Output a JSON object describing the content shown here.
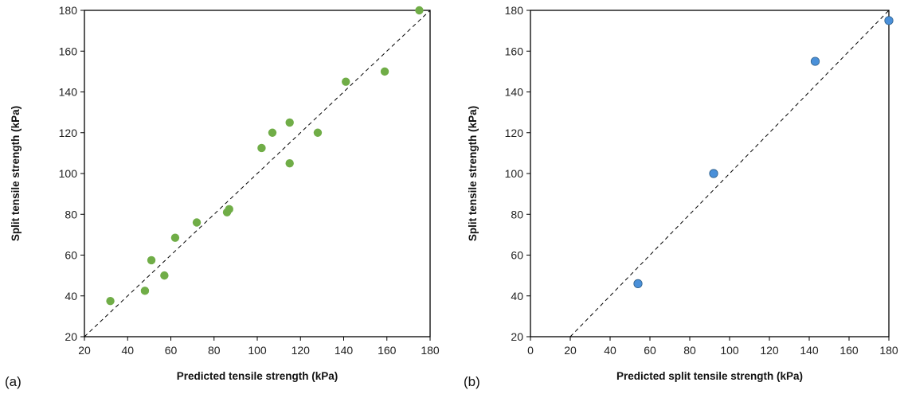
{
  "chart_data": [
    {
      "type": "scatter",
      "panel_label": "(a)",
      "xlabel": "Predicted tensile strength (kPa)",
      "ylabel": "Split tensile strength (kPa)",
      "xlim": [
        20,
        180
      ],
      "ylim": [
        20,
        180
      ],
      "xticks": [
        20,
        40,
        60,
        80,
        100,
        120,
        140,
        160,
        180
      ],
      "yticks": [
        20,
        40,
        60,
        80,
        100,
        120,
        140,
        160,
        180
      ],
      "grid": false,
      "reference_line": {
        "style": "dashed",
        "from": [
          20,
          20
        ],
        "to": [
          180,
          180
        ]
      },
      "marker_color": "#70ad47",
      "points": [
        [
          32,
          37.5
        ],
        [
          48,
          42.5
        ],
        [
          51,
          57.5
        ],
        [
          57,
          50
        ],
        [
          62,
          68.5
        ],
        [
          72,
          76
        ],
        [
          86,
          81
        ],
        [
          87,
          82.5
        ],
        [
          102,
          112.5
        ],
        [
          107,
          120
        ],
        [
          115,
          105
        ],
        [
          115,
          125
        ],
        [
          128,
          120
        ],
        [
          141,
          145
        ],
        [
          159,
          150
        ],
        [
          175,
          180
        ]
      ]
    },
    {
      "type": "scatter",
      "panel_label": "(b)",
      "xlabel": "Predicted split tensile strength (kPa)",
      "ylabel": "Split tensile strength (kPa)",
      "xlim": [
        0,
        180
      ],
      "ylim": [
        20,
        180
      ],
      "xticks": [
        0,
        20,
        40,
        60,
        80,
        100,
        120,
        140,
        160,
        180
      ],
      "yticks": [
        20,
        40,
        60,
        80,
        100,
        120,
        140,
        160,
        180
      ],
      "grid": false,
      "reference_line": {
        "style": "dashed",
        "from": [
          20,
          20
        ],
        "to": [
          180,
          180
        ]
      },
      "marker_color": "#4a90d9",
      "points": [
        [
          54,
          46
        ],
        [
          92,
          100
        ],
        [
          143,
          155
        ],
        [
          180,
          175
        ]
      ]
    }
  ]
}
